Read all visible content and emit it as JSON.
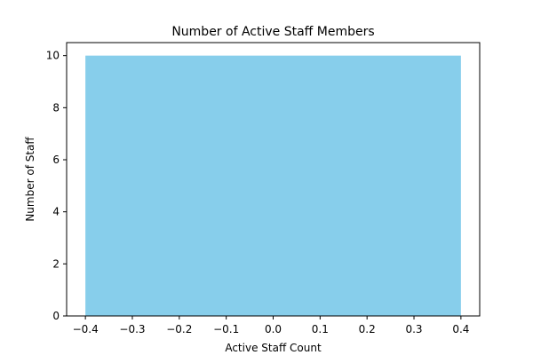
{
  "chart_data": {
    "type": "bar",
    "title": "Number of Active Staff Members",
    "xlabel": "Active Staff Count",
    "ylabel": "Number of Staff",
    "categories": [
      0
    ],
    "values": [
      10
    ],
    "bar_width": 0.8,
    "bar_color": "#87ceeb",
    "xlim": [
      -0.44,
      0.44
    ],
    "ylim": [
      0,
      10.5
    ],
    "xticks": [
      -0.4,
      -0.3,
      -0.2,
      -0.1,
      0.0,
      0.1,
      0.2,
      0.3,
      0.4
    ],
    "xtick_labels": [
      "−0.4",
      "−0.3",
      "−0.2",
      "−0.1",
      "0.0",
      "0.1",
      "0.2",
      "0.3",
      "0.4"
    ],
    "yticks": [
      0,
      2,
      4,
      6,
      8,
      10
    ],
    "ytick_labels": [
      "0",
      "2",
      "4",
      "6",
      "8",
      "10"
    ],
    "grid": false,
    "legend": "none"
  }
}
